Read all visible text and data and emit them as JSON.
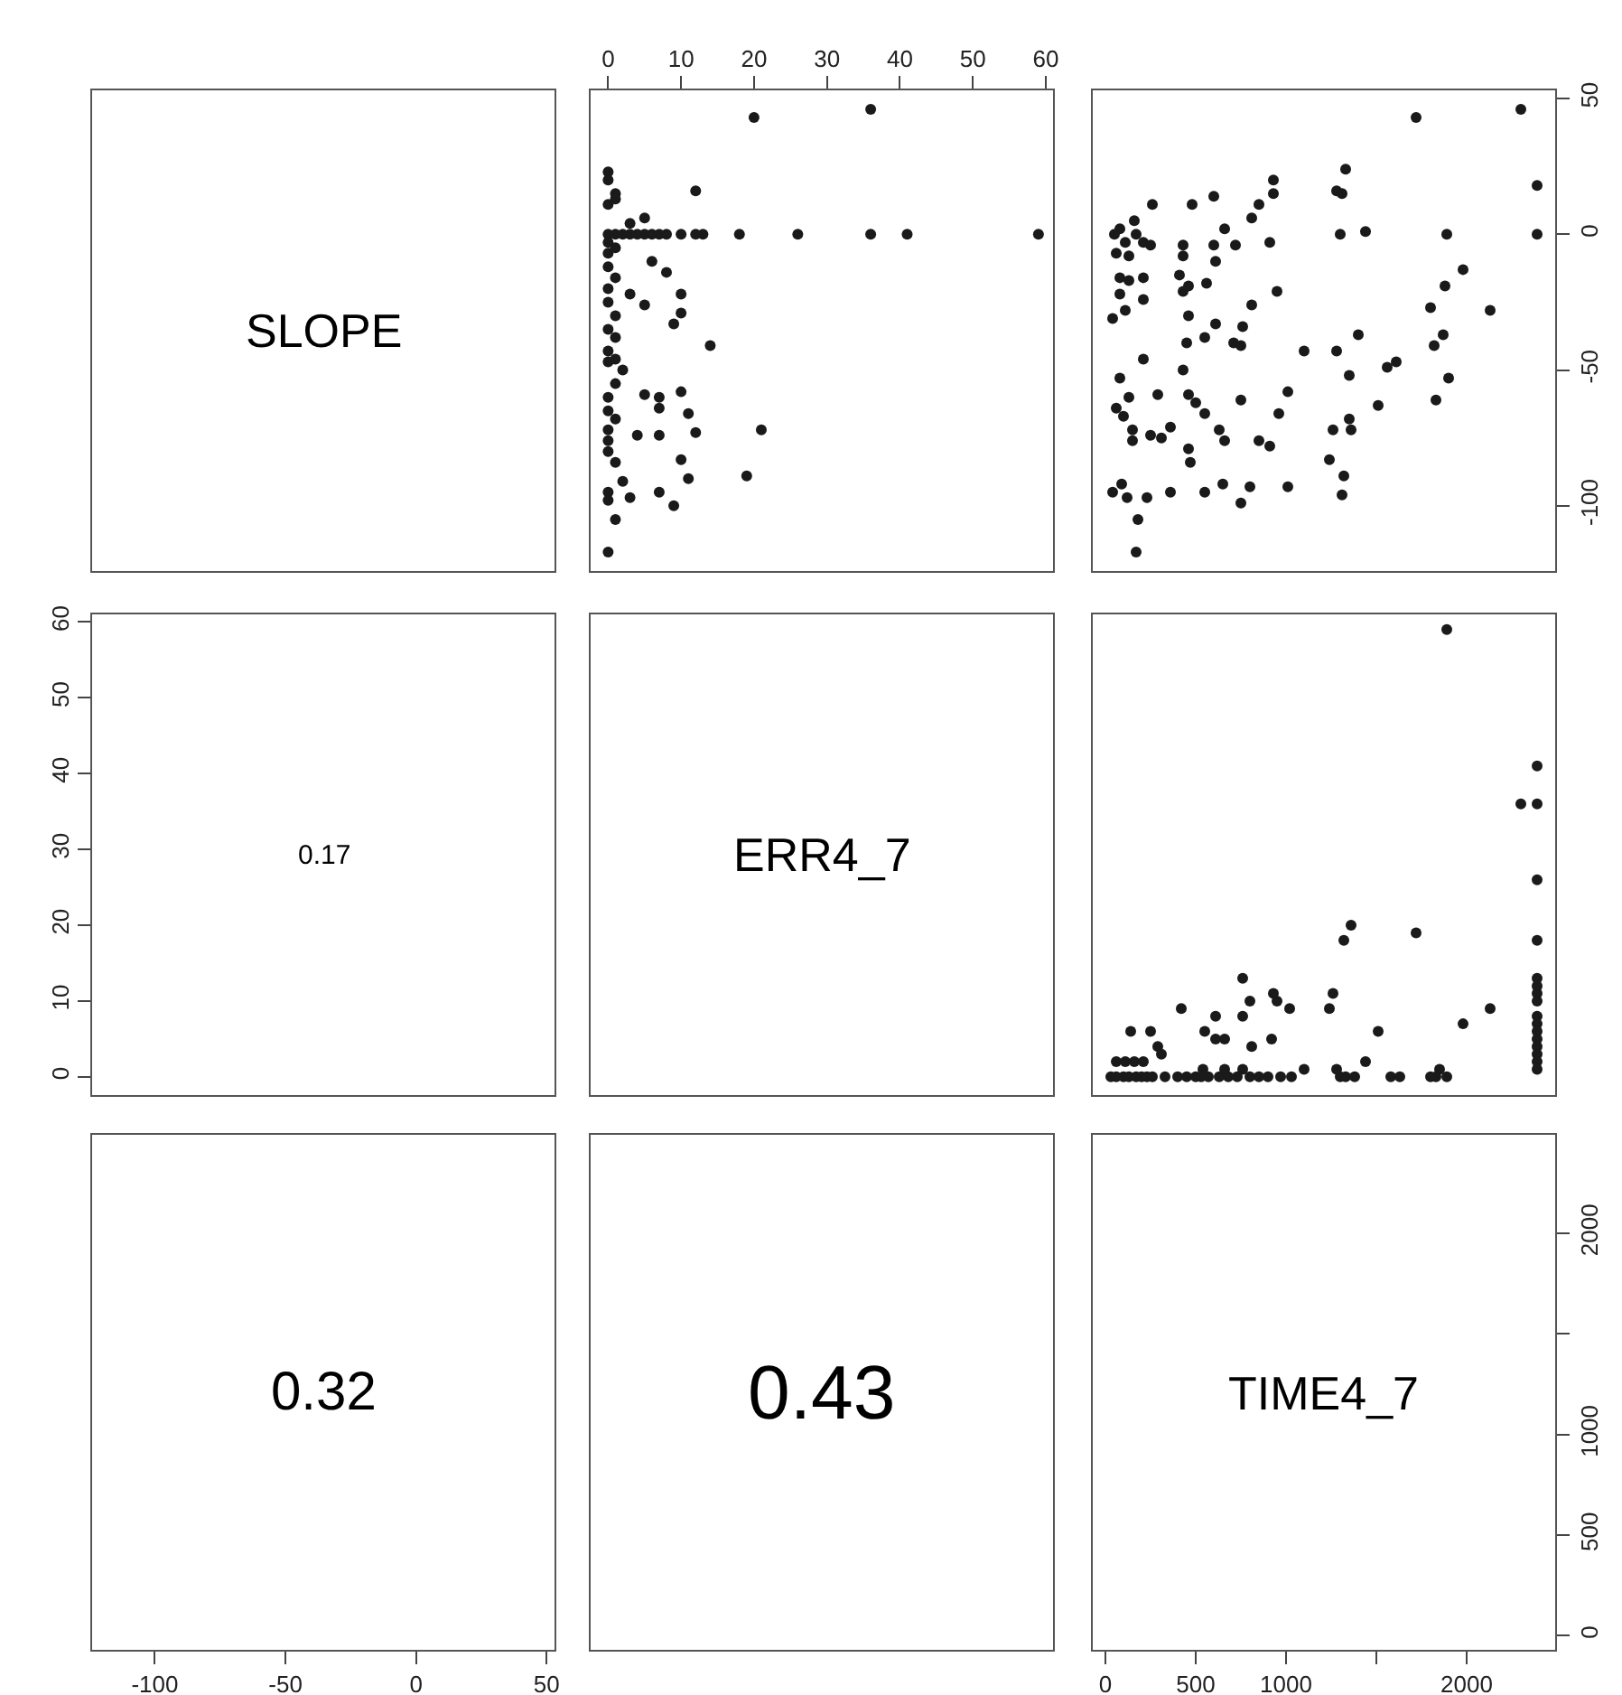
{
  "chart_data": [
    {
      "type": "other",
      "annotations": [
        "SLOPE"
      ]
    },
    {
      "type": "scatter",
      "xlim": [
        -2.4,
        61
      ],
      "xticks": [
        0,
        10,
        20,
        30,
        40,
        50,
        60
      ],
      "ylim": [
        -124,
        53
      ],
      "yticks": [
        -100,
        -50,
        0,
        50
      ],
      "tick_labels": "x",
      "marker": "circle",
      "color": "#1a1a1a",
      "x": [
        20,
        36,
        12,
        0,
        0,
        1,
        0,
        1,
        5,
        3,
        0,
        1,
        2,
        3,
        4,
        5,
        6,
        7,
        8,
        10,
        12,
        13,
        18,
        26,
        36,
        41,
        59,
        6,
        8,
        0,
        0,
        1,
        0,
        1,
        0,
        3,
        5,
        10,
        10,
        9,
        0,
        1,
        0,
        1,
        14,
        0,
        1,
        2,
        0,
        1,
        0,
        5,
        7,
        7,
        10,
        11,
        0,
        1,
        0,
        4,
        7,
        12,
        21,
        0,
        0,
        1,
        10,
        11,
        19,
        2,
        3,
        7,
        9,
        0,
        0,
        1,
        0
      ],
      "values": [
        43,
        46,
        16,
        23,
        20,
        15,
        11,
        13,
        6,
        4,
        0,
        0,
        0,
        0,
        0,
        0,
        0,
        0,
        0,
        0,
        0,
        0,
        0,
        0,
        0,
        0,
        0,
        -10,
        -14,
        -3,
        -7,
        -5,
        -12,
        -16,
        -20,
        -22,
        -26,
        -22,
        -29,
        -33,
        -25,
        -30,
        -35,
        -38,
        -41,
        -43,
        -46,
        -50,
        -47,
        -55,
        -60,
        -59,
        -60,
        -64,
        -58,
        -66,
        -65,
        -68,
        -72,
        -74,
        -74,
        -73,
        -72,
        -76,
        -80,
        -84,
        -83,
        -90,
        -89,
        -91,
        -97,
        -95,
        -100,
        -95,
        -98,
        -105,
        -117
      ]
    },
    {
      "type": "scatter",
      "xlim": [
        -70,
        2490
      ],
      "xticks": [
        0,
        500,
        1000,
        2000
      ],
      "y2lim": [
        -124,
        53
      ],
      "y2ticks": [
        -100,
        -50,
        0,
        50
      ],
      "tick_labels": "y",
      "marker": "circle",
      "series": [
        {
          "axis": "y2",
          "color": "#1a1a1a",
          "x": [
            1720,
            2300,
            2390,
            2390,
            50,
            80,
            160,
            110,
            60,
            130,
            170,
            210,
            250,
            260,
            480,
            600,
            850,
            810,
            930,
            930,
            660,
            720,
            610,
            430,
            430,
            600,
            910,
            1280,
            1310,
            1330,
            1300,
            1440,
            1890,
            1980,
            1880,
            2130,
            1800,
            1870,
            1820,
            1900,
            1830,
            1560,
            1610,
            1510,
            1400,
            1280,
            1350,
            1100,
            1360,
            1260,
            1350,
            1240,
            1320,
            1310,
            1010,
            960,
            1010,
            800,
            750,
            850,
            910,
            630,
            660,
            750,
            550,
            460,
            500,
            430,
            290,
            210,
            80,
            60,
            130,
            100,
            150,
            250,
            360,
            150,
            310,
            460,
            470,
            40,
            90,
            120,
            230,
            360,
            180,
            170,
            550,
            650,
            40,
            110,
            80,
            210,
            80,
            130,
            210,
            410,
            430,
            460,
            560,
            460,
            550,
            610,
            450,
            710,
            750,
            810,
            760,
            950
          ],
          "values": [
            43,
            46,
            18,
            0,
            0,
            2,
            5,
            -3,
            -7,
            -8,
            0,
            -3,
            -4,
            11,
            11,
            14,
            11,
            6,
            20,
            15,
            2,
            -4,
            -10,
            -4,
            -8,
            -4,
            -3,
            16,
            15,
            24,
            0,
            1,
            0,
            -13,
            -19,
            -28,
            -27,
            -37,
            -41,
            -53,
            -61,
            -49,
            -47,
            -63,
            -37,
            -43,
            -52,
            -43,
            -72,
            -72,
            -68,
            -83,
            -89,
            -96,
            -58,
            -66,
            -93,
            -93,
            -99,
            -76,
            -78,
            -72,
            -76,
            -61,
            -66,
            -59,
            -62,
            -50,
            -59,
            -46,
            -53,
            -64,
            -60,
            -67,
            -72,
            -74,
            -71,
            -76,
            -75,
            -79,
            -84,
            -95,
            -92,
            -97,
            -97,
            -95,
            -105,
            -117,
            -95,
            -92,
            -31,
            -28,
            -22,
            -24,
            -16,
            -17,
            -16,
            -15,
            -21,
            -19,
            -18,
            -30,
            -38,
            -33,
            -40,
            -40,
            -41,
            -26,
            -34,
            -21
          ]
        }
      ]
    },
    {
      "type": "scatter",
      "annotations": [
        "0.17"
      ],
      "xlim": [
        -124,
        53
      ],
      "xticks": [
        -100,
        -50,
        0,
        50
      ],
      "ylim": [
        -2.4,
        61
      ],
      "yticks": [
        0,
        10,
        20,
        30,
        40,
        50,
        60
      ],
      "tick_labels": "y"
    },
    {
      "type": "other",
      "annotations": [
        "ERR4_7"
      ]
    },
    {
      "type": "scatter",
      "xlim": [
        -70,
        2490
      ],
      "xticks": [
        0,
        500,
        1000,
        2000
      ],
      "ylim": [
        -2.4,
        61
      ],
      "yticks": [
        0,
        10,
        20,
        30,
        40,
        50,
        60
      ],
      "tick_labels": false,
      "marker": "circle",
      "color": "#1a1a1a",
      "x": [
        1890,
        2390,
        2300,
        2390,
        2390,
        2390,
        2390,
        2390,
        2390,
        2390,
        2390,
        2390,
        2390,
        2390,
        2390,
        2390,
        2390,
        2390,
        1360,
        1320,
        1720,
        2130,
        1980,
        1260,
        1240,
        1510,
        1440,
        760,
        800,
        760,
        930,
        950,
        1020,
        420,
        610,
        140,
        250,
        550,
        610,
        660,
        290,
        310,
        810,
        920,
        540,
        660,
        760,
        1100,
        1280,
        60,
        110,
        160,
        210,
        30,
        60,
        100,
        130,
        170,
        200,
        230,
        260,
        330,
        400,
        450,
        500,
        530,
        570,
        630,
        680,
        730,
        800,
        850,
        900,
        970,
        1030,
        1300,
        1330,
        1380,
        1580,
        1630,
        1800,
        1830,
        1850,
        1890
      ],
      "values": [
        59,
        41,
        36,
        36,
        26,
        18,
        13,
        12,
        11,
        10,
        8,
        7,
        6,
        5,
        4,
        3,
        2,
        1,
        20,
        18,
        19,
        9,
        7,
        11,
        9,
        6,
        2,
        13,
        10,
        8,
        11,
        10,
        9,
        9,
        8,
        6,
        6,
        6,
        5,
        5,
        4,
        3,
        4,
        5,
        1,
        1,
        1,
        1,
        1,
        2,
        2,
        2,
        2,
        0,
        0,
        0,
        0,
        0,
        0,
        0,
        0,
        0,
        0,
        0,
        0,
        0,
        0,
        0,
        0,
        0,
        0,
        0,
        0,
        0,
        0,
        0,
        0,
        0,
        0,
        0,
        0,
        0,
        1,
        0
      ]
    },
    {
      "type": "scatter",
      "annotations": [
        "0.32"
      ],
      "xlim": [
        -124,
        53
      ],
      "xticks": [
        -100,
        -50,
        0,
        50
      ],
      "ylim": [
        -70,
        2490
      ],
      "yticks": [
        0,
        500,
        1000,
        2000
      ],
      "tick_labels": "x"
    },
    {
      "type": "other",
      "annotations": [
        "0.43"
      ]
    },
    {
      "type": "scatter",
      "annotations": [
        "TIME4_7"
      ],
      "xlim": [
        -70,
        2490
      ],
      "xticks": [
        0,
        500,
        1000,
        {
          "value": 1500,
          "label": null
        },
        2000
      ],
      "y2lim": [
        -70,
        2490
      ],
      "y2ticks": [
        0,
        500,
        1000,
        {
          "value": 1500,
          "label": null
        },
        2000
      ]
    }
  ]
}
